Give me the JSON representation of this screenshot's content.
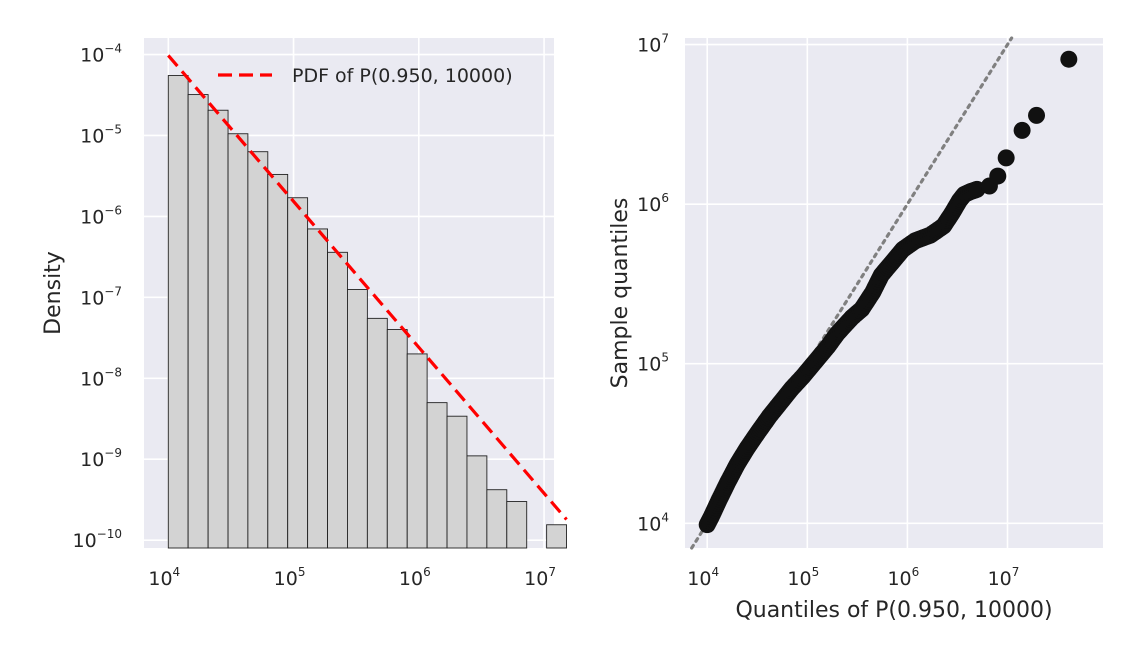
{
  "chart_data": [
    {
      "type": "bar",
      "subtype": "histogram",
      "xscale": "log",
      "yscale": "log",
      "xlim": [
        6400,
        12000000
      ],
      "ylim": [
        8e-11,
        0.00016
      ],
      "xticks": [
        10000,
        100000,
        1000000,
        10000000
      ],
      "xtick_labels": [
        {
          "base": "10",
          "exp": "4"
        },
        {
          "base": "10",
          "exp": "5"
        },
        {
          "base": "10",
          "exp": "6"
        },
        {
          "base": "10",
          "exp": "7"
        }
      ],
      "yticks": [
        1e-10,
        1e-09,
        1e-08,
        1e-07,
        1e-06,
        1e-05,
        0.0001
      ],
      "ytick_labels": [
        {
          "base": "10",
          "exp": "−10"
        },
        {
          "base": "10",
          "exp": "−9"
        },
        {
          "base": "10",
          "exp": "−8"
        },
        {
          "base": "10",
          "exp": "−7"
        },
        {
          "base": "10",
          "exp": "−6"
        },
        {
          "base": "10",
          "exp": "−5"
        },
        {
          "base": "10",
          "exp": "−4"
        }
      ],
      "xlabel": "",
      "ylabel": "Density",
      "bins": [
        {
          "x0": 10000,
          "x1": 14400,
          "density": 5.5e-05
        },
        {
          "x0": 14400,
          "x1": 20800,
          "density": 3.2e-05
        },
        {
          "x0": 20800,
          "x1": 30000,
          "density": 2.05e-05
        },
        {
          "x0": 30000,
          "x1": 43200,
          "density": 1.05e-05
        },
        {
          "x0": 43200,
          "x1": 62300,
          "density": 6.3e-06
        },
        {
          "x0": 62300,
          "x1": 89800,
          "density": 3.3e-06
        },
        {
          "x0": 89800,
          "x1": 129500,
          "density": 1.7e-06
        },
        {
          "x0": 129500,
          "x1": 186800,
          "density": 7e-07
        },
        {
          "x0": 186800,
          "x1": 269400,
          "density": 3.6e-07
        },
        {
          "x0": 269400,
          "x1": 388500,
          "density": 1.25e-07
        },
        {
          "x0": 388500,
          "x1": 560300,
          "density": 5.5e-08
        },
        {
          "x0": 560300,
          "x1": 808000,
          "density": 4e-08
        },
        {
          "x0": 808000,
          "x1": 1165000,
          "density": 2e-08
        },
        {
          "x0": 1165000,
          "x1": 1680000,
          "density": 5e-09
        },
        {
          "x0": 1680000,
          "x1": 2423000,
          "density": 3.4e-09
        },
        {
          "x0": 2423000,
          "x1": 3494000,
          "density": 1.1e-09
        },
        {
          "x0": 3494000,
          "x1": 5039000,
          "density": 4.2e-10
        },
        {
          "x0": 5039000,
          "x1": 7267000,
          "density": 3e-10
        },
        {
          "x0": 10480000,
          "x1": 15110000,
          "density": 1.55e-10
        }
      ],
      "pdf_line": {
        "name": "PDF of P(0.950, 10000)",
        "color": "#ff0000",
        "style": "dashed",
        "x": [
          10000,
          15110000
        ],
        "y": [
          9.75e-05,
          1.8e-10
        ]
      },
      "legend": {
        "loc": "upper right"
      }
    },
    {
      "type": "scatter",
      "subtype": "qq-plot",
      "xscale": "log",
      "yscale": "log",
      "xlim": [
        6000,
        90000000
      ],
      "ylim": [
        7000,
        11000000
      ],
      "xticks": [
        10000,
        100000,
        1000000,
        10000000
      ],
      "xtick_labels": [
        {
          "base": "10",
          "exp": "4"
        },
        {
          "base": "10",
          "exp": "5"
        },
        {
          "base": "10",
          "exp": "6"
        },
        {
          "base": "10",
          "exp": "7"
        }
      ],
      "yticks": [
        10000,
        100000,
        1000000,
        10000000
      ],
      "ytick_labels": [
        {
          "base": "10",
          "exp": "4"
        },
        {
          "base": "10",
          "exp": "5"
        },
        {
          "base": "10",
          "exp": "6"
        },
        {
          "base": "10",
          "exp": "7"
        }
      ],
      "xlabel": "Quantiles of P(0.950, 10000)",
      "ylabel": "Sample quantiles",
      "reference_line": {
        "slope": 1,
        "style": "dotted",
        "color": "#808080"
      },
      "point_color": "#111111",
      "curve": [
        [
          10000,
          9800
        ],
        [
          11000,
          11000
        ],
        [
          13000,
          13800
        ],
        [
          16000,
          18000
        ],
        [
          20000,
          23500
        ],
        [
          25000,
          29500
        ],
        [
          32000,
          37000
        ],
        [
          42000,
          47000
        ],
        [
          55000,
          58000
        ],
        [
          70000,
          70000
        ],
        [
          90000,
          83000
        ],
        [
          120000,
          103000
        ],
        [
          160000,
          128000
        ],
        [
          200000,
          155000
        ],
        [
          280000,
          195000
        ],
        [
          350000,
          220000
        ],
        [
          450000,
          280000
        ],
        [
          550000,
          360000
        ],
        [
          700000,
          430000
        ],
        [
          900000,
          520000
        ],
        [
          1200000,
          590000
        ],
        [
          1700000,
          640000
        ],
        [
          2300000,
          730000
        ],
        [
          2800000,
          880000
        ],
        [
          3300000,
          1050000
        ],
        [
          3700000,
          1150000
        ],
        [
          4300000,
          1200000
        ],
        [
          5200000,
          1250000
        ]
      ],
      "points": [
        [
          6600000,
          1300000
        ],
        [
          8000000,
          1500000
        ],
        [
          9700000,
          1950000
        ],
        [
          14000000,
          2900000
        ],
        [
          19500000,
          3600000
        ],
        [
          41000000,
          8100000
        ]
      ]
    }
  ]
}
